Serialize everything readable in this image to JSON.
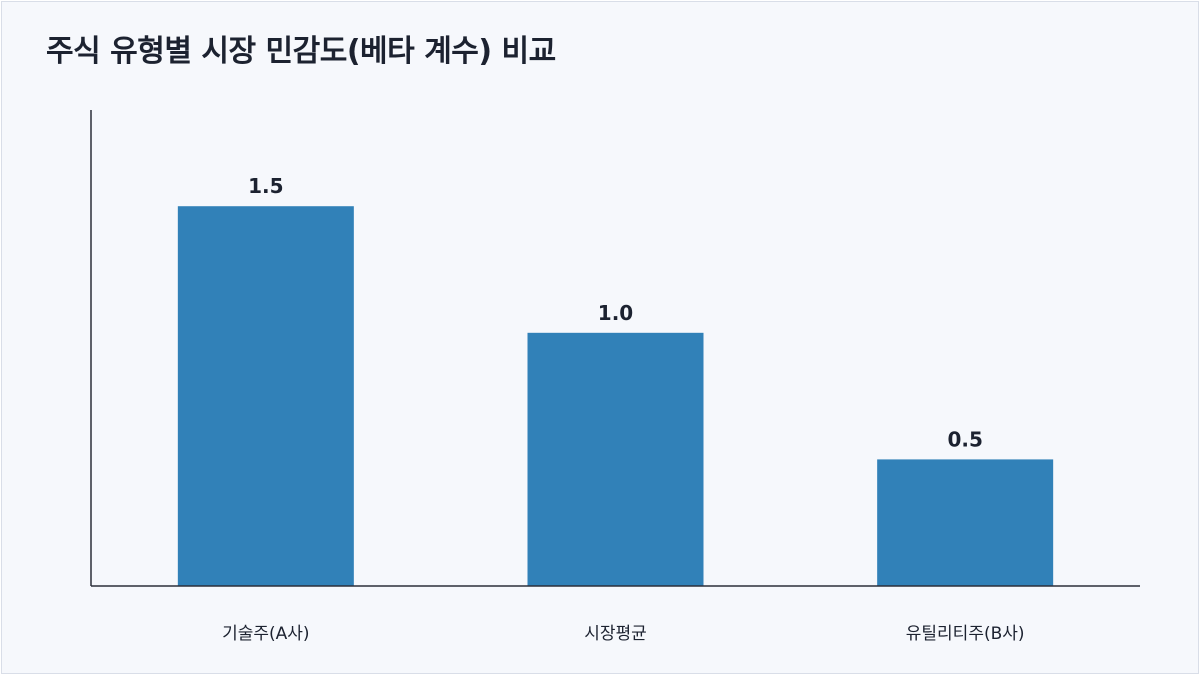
{
  "chart_data": {
    "type": "bar",
    "title": "주식 유형별 시장 민감도(베타 계수) 비교",
    "categories": [
      "기술주(A사)",
      "시장평균",
      "유틸리티주(B사)"
    ],
    "values": [
      1.5,
      1.0,
      0.5
    ],
    "value_labels": [
      "1.5",
      "1.0",
      "0.5"
    ],
    "xlabel": "",
    "ylabel": "",
    "ylim": [
      0,
      1.88
    ],
    "grid": false,
    "legend": "none",
    "bar_color": "#3181b8"
  }
}
